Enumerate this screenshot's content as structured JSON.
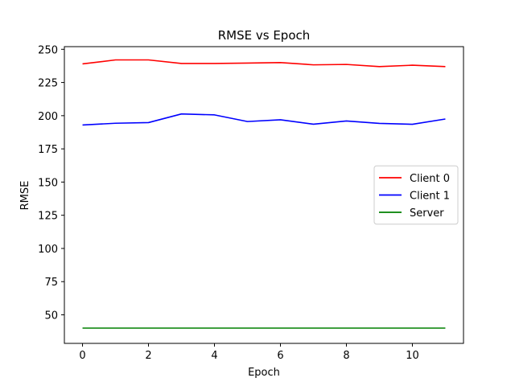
{
  "chart_data": {
    "type": "line",
    "title": "RMSE vs Epoch",
    "xlabel": "Epoch",
    "ylabel": "RMSE",
    "x": [
      0,
      1,
      2,
      3,
      4,
      5,
      6,
      7,
      8,
      9,
      10,
      11
    ],
    "xlim": [
      -0.55,
      11.55
    ],
    "ylim": [
      28.5,
      252
    ],
    "xticks": [
      0,
      2,
      4,
      6,
      8,
      10
    ],
    "yticks": [
      50,
      75,
      100,
      125,
      150,
      175,
      200,
      225,
      250
    ],
    "grid": false,
    "legend_position": "center-right",
    "series": [
      {
        "name": "Client 0",
        "color": "#ff0000",
        "values": [
          239,
          242,
          242,
          239.3,
          239.3,
          239.6,
          240,
          238.3,
          238.6,
          237,
          238,
          237
        ]
      },
      {
        "name": "Client 1",
        "color": "#0000ff",
        "values": [
          193,
          194.3,
          194.8,
          201.3,
          200.6,
          195.6,
          196.9,
          193.6,
          196,
          194.2,
          193.5,
          197.5
        ]
      },
      {
        "name": "Server",
        "color": "#008000",
        "values": [
          40,
          40,
          40,
          40,
          40,
          40,
          40,
          40,
          40,
          40,
          40,
          40
        ]
      }
    ]
  }
}
